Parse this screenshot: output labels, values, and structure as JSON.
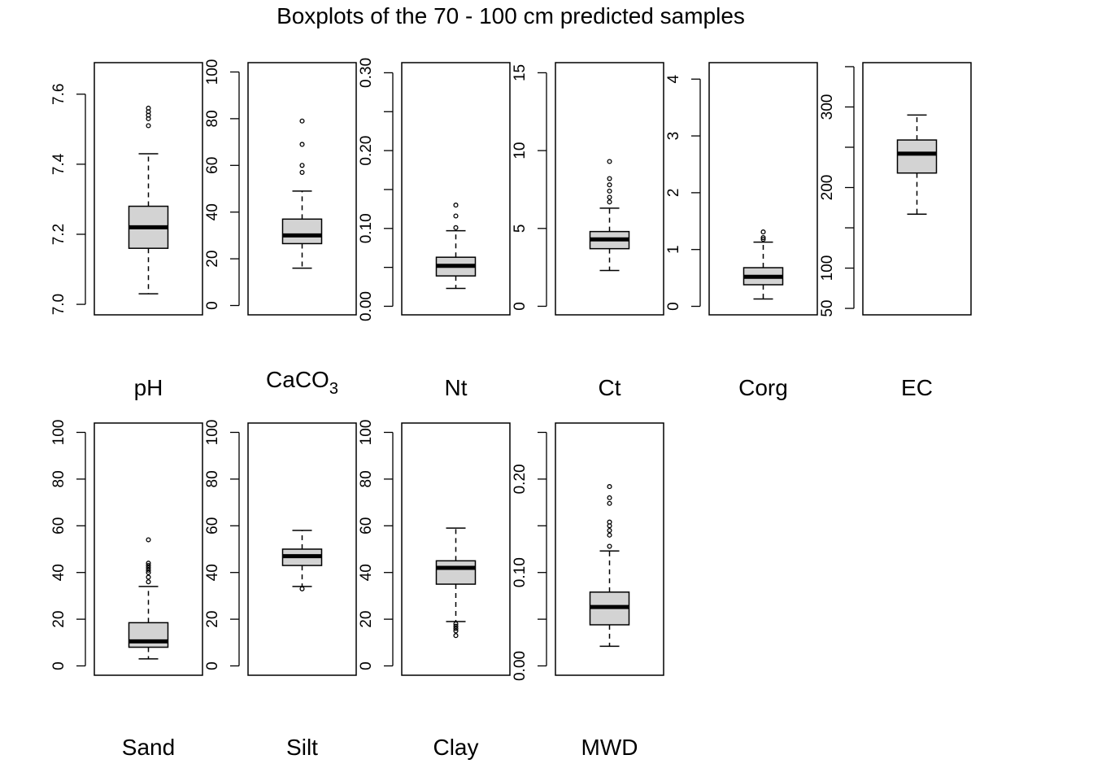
{
  "title": "Boxplots of the 70 - 100 cm predicted samples",
  "colors": {
    "box_fill": "#d3d3d3",
    "stroke": "#000000",
    "background": "#ffffff"
  },
  "chart_data": [
    {
      "type": "box",
      "name": "pH",
      "label": "pH",
      "ylim": [
        6.97,
        7.69
      ],
      "yticks": [
        7.0,
        7.2,
        7.4,
        7.6
      ],
      "ytick_labels": [
        "7.0",
        "7.2",
        "7.4",
        "7.6"
      ],
      "whisker_low": 7.03,
      "q1": 7.16,
      "median": 7.22,
      "q3": 7.28,
      "whisker_high": 7.43,
      "outliers": [
        7.51,
        7.53,
        7.54,
        7.55,
        7.56
      ]
    },
    {
      "type": "box",
      "name": "CaCO3",
      "label": "CaCO3",
      "ylim": [
        -4,
        104
      ],
      "yticks": [
        0,
        20,
        40,
        60,
        80,
        100
      ],
      "ytick_labels": [
        "0",
        "20",
        "40",
        "60",
        "80",
        "100"
      ],
      "whisker_low": 16,
      "q1": 26.5,
      "median": 30,
      "q3": 37,
      "whisker_high": 49,
      "outliers": [
        57,
        60,
        69,
        79
      ]
    },
    {
      "type": "box",
      "name": "Nt",
      "label": "Nt",
      "ylim": [
        -0.011,
        0.313
      ],
      "yticks": [
        0.0,
        0.05,
        0.1,
        0.15,
        0.2,
        0.25,
        0.3
      ],
      "ytick_labels": [
        "0.00",
        "",
        "0.10",
        "",
        "0.20",
        "",
        "0.30"
      ],
      "whisker_low": 0.023,
      "q1": 0.039,
      "median": 0.052,
      "q3": 0.063,
      "whisker_high": 0.097,
      "outliers": [
        0.101,
        0.116,
        0.13
      ]
    },
    {
      "type": "box",
      "name": "Ct",
      "label": "Ct",
      "ylim": [
        -0.55,
        15.65
      ],
      "yticks": [
        0,
        5,
        10,
        15
      ],
      "ytick_labels": [
        "0",
        "5",
        "10",
        "15"
      ],
      "whisker_low": 2.3,
      "q1": 3.7,
      "median": 4.3,
      "q3": 4.8,
      "whisker_high": 6.3,
      "outliers": [
        6.7,
        7.0,
        7.4,
        7.8,
        8.2,
        9.3
      ]
    },
    {
      "type": "box",
      "name": "Corg",
      "label": "Corg",
      "ylim": [
        -0.15,
        4.29
      ],
      "yticks": [
        0,
        1,
        2,
        3,
        4
      ],
      "ytick_labels": [
        "0",
        "1",
        "2",
        "3",
        "4"
      ],
      "whisker_low": 0.13,
      "q1": 0.38,
      "median": 0.52,
      "q3": 0.68,
      "whisker_high": 1.13,
      "outliers": [
        1.18,
        1.21,
        1.31
      ]
    },
    {
      "type": "box",
      "name": "EC",
      "label": "EC",
      "ylim": [
        42,
        355
      ],
      "yticks": [
        50,
        100,
        150,
        200,
        250,
        300,
        350
      ],
      "ytick_labels": [
        "50",
        "100",
        "",
        "200",
        "",
        "300",
        ""
      ],
      "whisker_low": 167,
      "q1": 218,
      "median": 242,
      "q3": 259,
      "whisker_high": 290,
      "outliers": []
    },
    {
      "type": "box",
      "name": "Sand",
      "label": "Sand",
      "ylim": [
        -4,
        104
      ],
      "yticks": [
        0,
        20,
        40,
        60,
        80,
        100
      ],
      "ytick_labels": [
        "0",
        "20",
        "40",
        "60",
        "80",
        "100"
      ],
      "whisker_low": 3,
      "q1": 8,
      "median": 10.5,
      "q3": 18.5,
      "whisker_high": 34,
      "outliers": [
        36,
        38,
        40,
        41,
        42,
        43,
        44,
        54
      ]
    },
    {
      "type": "box",
      "name": "Silt",
      "label": "Silt",
      "ylim": [
        -4,
        104
      ],
      "yticks": [
        0,
        20,
        40,
        60,
        80,
        100
      ],
      "ytick_labels": [
        "0",
        "20",
        "40",
        "60",
        "80",
        "100"
      ],
      "whisker_low": 34,
      "q1": 43,
      "median": 47,
      "q3": 50,
      "whisker_high": 58,
      "outliers": [
        33
      ]
    },
    {
      "type": "box",
      "name": "Clay",
      "label": "Clay",
      "ylim": [
        -4,
        104
      ],
      "yticks": [
        0,
        20,
        40,
        60,
        80,
        100
      ],
      "ytick_labels": [
        "0",
        "20",
        "40",
        "60",
        "80",
        "100"
      ],
      "whisker_low": 19,
      "q1": 35,
      "median": 42,
      "q3": 45,
      "whisker_high": 59,
      "outliers": [
        13,
        15,
        16,
        17,
        18
      ]
    },
    {
      "type": "box",
      "name": "MWD",
      "label": "MWD",
      "ylim": [
        -0.01,
        0.26
      ],
      "yticks": [
        0.0,
        0.05,
        0.1,
        0.15,
        0.2,
        0.25
      ],
      "ytick_labels": [
        "0.00",
        "",
        "0.10",
        "",
        "0.20",
        ""
      ],
      "whisker_low": 0.021,
      "q1": 0.044,
      "median": 0.063,
      "q3": 0.079,
      "whisker_high": 0.123,
      "outliers": [
        0.128,
        0.14,
        0.145,
        0.15,
        0.154,
        0.174,
        0.18,
        0.192
      ]
    }
  ]
}
